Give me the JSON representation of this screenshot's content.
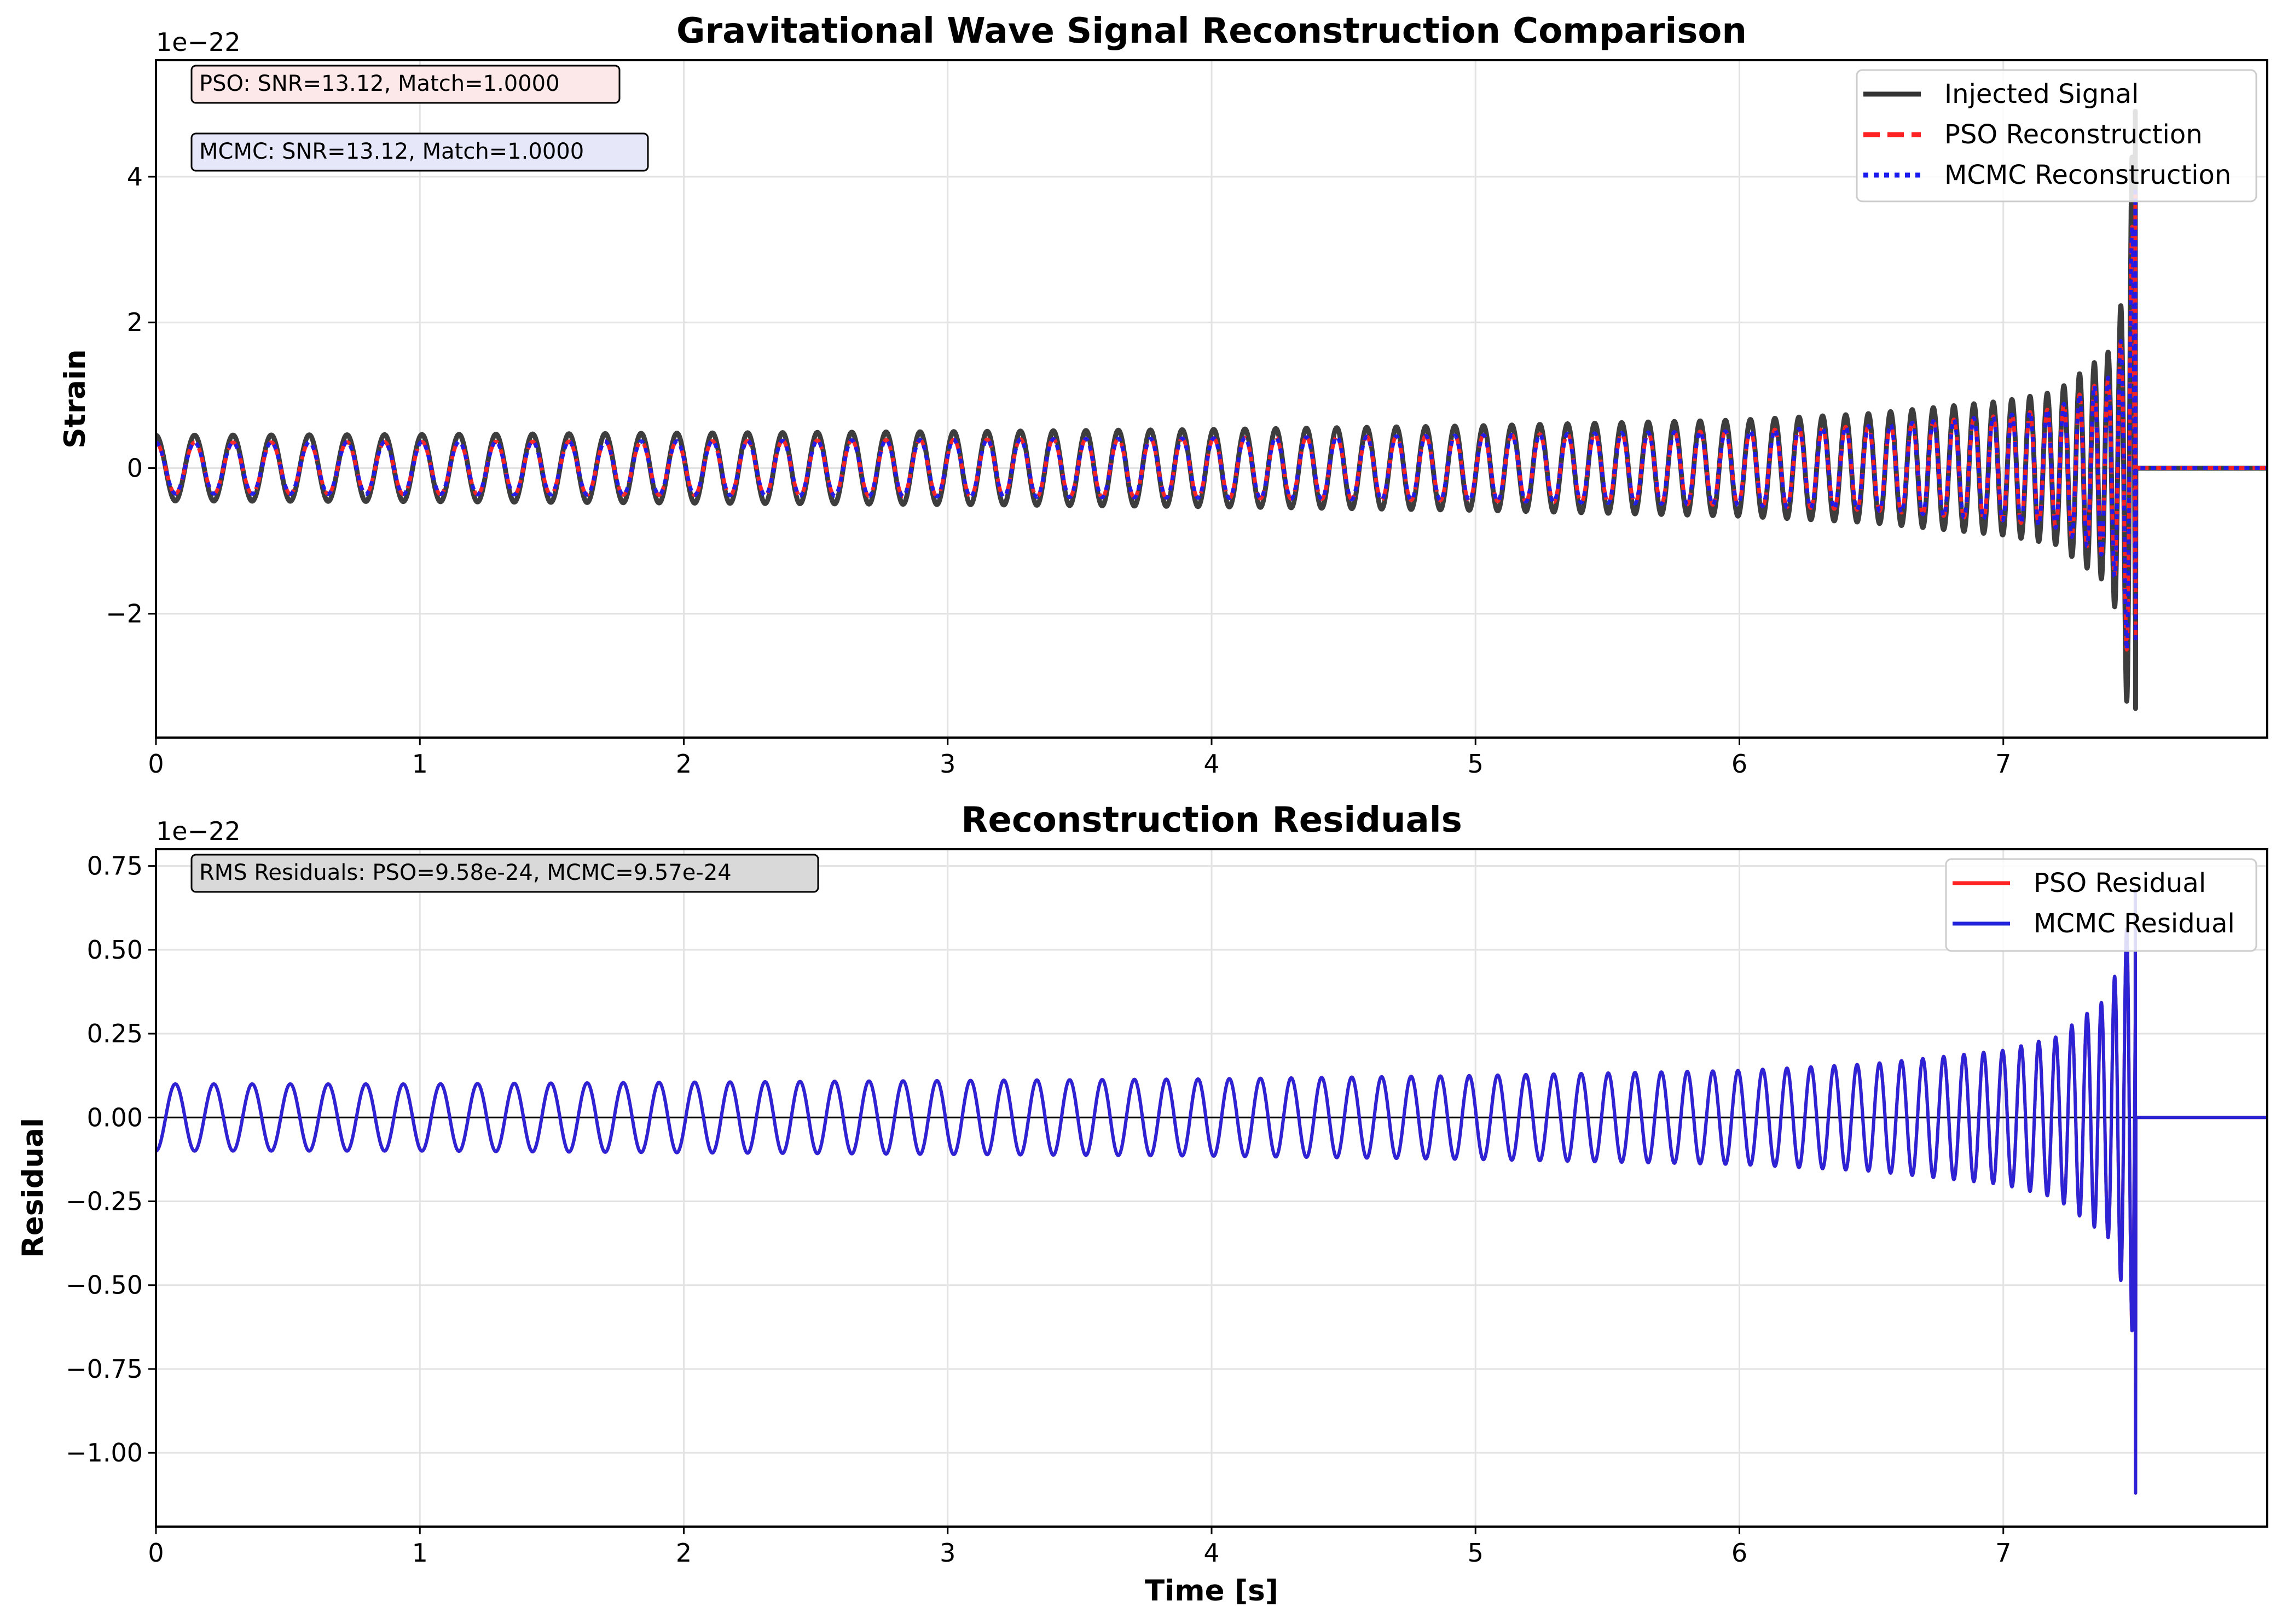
{
  "chart_data": [
    {
      "type": "line",
      "title": "Gravitational Wave Signal Reconstruction Comparison",
      "xlabel": "",
      "ylabel": "Strain",
      "y_offset_label": "1e−22",
      "xlim": [
        0,
        8.0
      ],
      "ylim": [
        -3.7,
        5.6
      ],
      "y_scale_factor": "1e-22",
      "grid": true,
      "legend_position": "top-right",
      "x_ticks": [
        "0",
        "1",
        "2",
        "3",
        "4",
        "5",
        "6",
        "7"
      ],
      "y_ticks": [
        "−2",
        "0",
        "2",
        "4"
      ],
      "annotations": [
        {
          "text": "PSO: SNR=13.12, Match=1.0000",
          "color": "#fce8e8"
        },
        {
          "text": "MCMC: SNR=13.12, Match=1.0000",
          "color": "#e6e8fa"
        }
      ],
      "merger_time": 7.5,
      "series": [
        {
          "name": "Injected Signal",
          "color": "#333333",
          "style": "solid",
          "x": [
            0,
            1,
            2,
            3,
            4,
            5,
            6,
            6.5,
            7.0,
            7.2,
            7.4,
            7.45,
            7.5,
            8.0
          ],
          "amplitude": [
            0.45,
            0.46,
            0.48,
            0.5,
            0.53,
            0.58,
            0.66,
            0.75,
            0.92,
            1.05,
            1.6,
            2.3,
            4.9,
            0.0
          ],
          "min_at_merger": -3.3
        },
        {
          "name": "PSO Reconstruction",
          "color": "#ff2222",
          "style": "dashed",
          "x": [
            0,
            1,
            2,
            3,
            4,
            5,
            6,
            6.5,
            7.0,
            7.2,
            7.4,
            7.45,
            7.5,
            8.0
          ],
          "amplitude": [
            0.35,
            0.36,
            0.37,
            0.39,
            0.41,
            0.45,
            0.51,
            0.58,
            0.72,
            0.82,
            1.25,
            1.8,
            3.8,
            0.0
          ],
          "min_at_merger": -2.4
        },
        {
          "name": "MCMC Reconstruction",
          "color": "#1a1aee",
          "style": "dotted",
          "x": [
            0,
            1,
            2,
            3,
            4,
            5,
            6,
            6.5,
            7.0,
            7.2,
            7.4,
            7.45,
            7.5,
            8.0
          ],
          "amplitude": [
            0.35,
            0.36,
            0.37,
            0.39,
            0.41,
            0.45,
            0.51,
            0.58,
            0.72,
            0.82,
            1.25,
            1.8,
            3.8,
            0.0
          ],
          "min_at_merger": -2.4
        }
      ]
    },
    {
      "type": "line",
      "title": "Reconstruction Residuals",
      "xlabel": "Time [s]",
      "ylabel": "Residual",
      "y_offset_label": "1e−22",
      "xlim": [
        0,
        8.0
      ],
      "ylim": [
        -1.22,
        0.8
      ],
      "y_scale_factor": "1e-22",
      "grid": true,
      "legend_position": "top-right",
      "x_ticks": [
        "0",
        "1",
        "2",
        "3",
        "4",
        "5",
        "6",
        "7"
      ],
      "y_ticks": [
        "−1.00",
        "−0.75",
        "−0.50",
        "−0.25",
        "0.00",
        "0.25",
        "0.50",
        "0.75"
      ],
      "annotations": [
        {
          "text": "RMS Residuals: PSO=9.58e-24, MCMC=9.57e-24",
          "color": "#d9d9d9"
        }
      ],
      "merger_time": 7.5,
      "series": [
        {
          "name": "PSO Residual",
          "color": "#ff2222",
          "style": "solid",
          "x": [
            0,
            1,
            2,
            3,
            4,
            5,
            6,
            6.5,
            7.0,
            7.2,
            7.4,
            7.45,
            7.5,
            8.0
          ],
          "amplitude": [
            0.1,
            0.1,
            0.105,
            0.11,
            0.115,
            0.125,
            0.14,
            0.16,
            0.2,
            0.24,
            0.36,
            0.5,
            0.68,
            0.0
          ],
          "min_at_merger": -1.12
        },
        {
          "name": "MCMC Residual",
          "color": "#2222dd",
          "style": "solid",
          "x": [
            0,
            1,
            2,
            3,
            4,
            5,
            6,
            6.5,
            7.0,
            7.2,
            7.4,
            7.45,
            7.5,
            8.0
          ],
          "amplitude": [
            0.1,
            0.1,
            0.105,
            0.11,
            0.115,
            0.125,
            0.14,
            0.16,
            0.2,
            0.24,
            0.36,
            0.5,
            0.68,
            0.0
          ],
          "min_at_merger": -1.12
        }
      ]
    }
  ]
}
